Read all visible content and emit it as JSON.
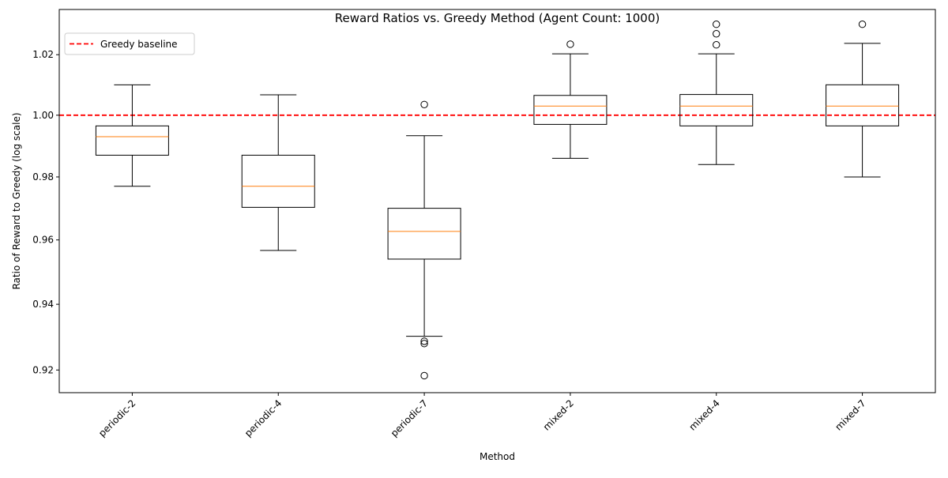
{
  "chart_data": {
    "type": "box",
    "title": "Reward Ratios vs. Greedy Method (Agent Count: 1000)",
    "xlabel": "Method",
    "ylabel": "Ratio of Reward to Greedy (log scale)",
    "y_scale": "log",
    "ylim": [
      0.9132,
      1.0352
    ],
    "yticks": [
      0.92,
      0.94,
      0.96,
      0.98,
      1.0,
      1.02
    ],
    "ytick_labels": [
      "0.92",
      "0.94",
      "0.96",
      "0.98",
      "1.00",
      "1.02"
    ],
    "grid": false,
    "categories": [
      "periodic-2",
      "periodic-4",
      "periodic-7",
      "mixed-2",
      "mixed-4",
      "mixed-7"
    ],
    "xtick_rotation": 45,
    "boxes": [
      {
        "category": "periodic-2",
        "whisker_low": 0.977,
        "q1": 0.987,
        "median": 0.993,
        "q3": 0.9965,
        "whisker_high": 1.01,
        "outliers": []
      },
      {
        "category": "periodic-4",
        "whisker_low": 0.9567,
        "q1": 0.9703,
        "median": 0.977,
        "q3": 0.987,
        "whisker_high": 1.0067,
        "outliers": []
      },
      {
        "category": "periodic-7",
        "whisker_low": 0.9302,
        "q1": 0.954,
        "median": 0.9627,
        "q3": 0.97,
        "whisker_high": 0.9933,
        "outliers": [
          0.9183,
          0.928,
          0.9287,
          1.0035
        ]
      },
      {
        "category": "mixed-2",
        "whisker_low": 0.986,
        "q1": 0.997,
        "median": 1.003,
        "q3": 1.0065,
        "whisker_high": 1.0203,
        "outliers": [
          1.0235
        ]
      },
      {
        "category": "mixed-4",
        "whisker_low": 0.984,
        "q1": 0.9965,
        "median": 1.003,
        "q3": 1.0068,
        "whisker_high": 1.0203,
        "outliers": [
          1.0233,
          1.027,
          1.0302
        ]
      },
      {
        "category": "mixed-7",
        "whisker_low": 0.98,
        "q1": 0.9965,
        "median": 1.003,
        "q3": 1.01,
        "whisker_high": 1.0238,
        "outliers": [
          1.0302
        ]
      }
    ],
    "reference_line": {
      "value": 1.0,
      "label": "Greedy baseline",
      "color": "#ff0000",
      "style": "dashed"
    },
    "legend": {
      "placement": "top-left",
      "entries": [
        "Greedy baseline"
      ]
    },
    "colors": {
      "box": "#000000",
      "median": "#ff7f0e",
      "reference": "#ff0000"
    }
  }
}
